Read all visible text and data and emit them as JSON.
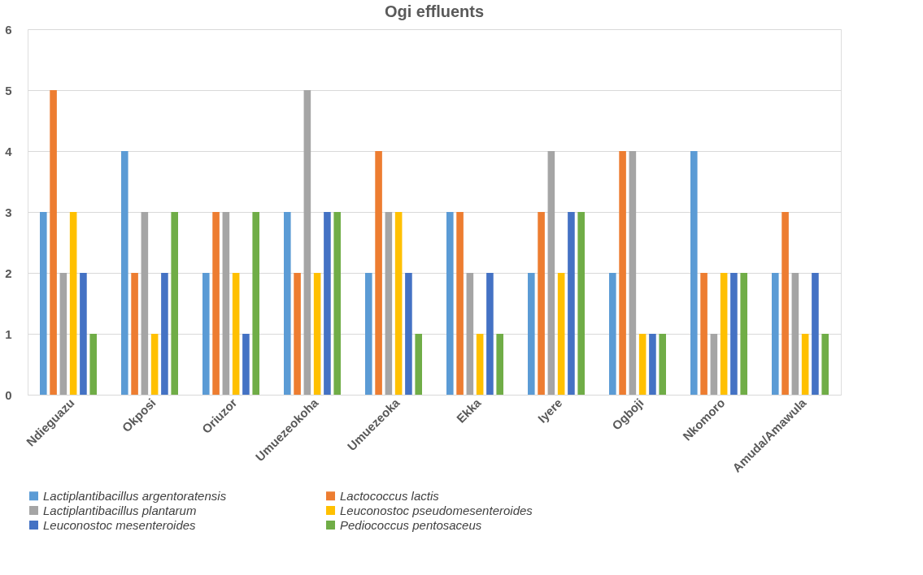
{
  "chart_data": {
    "type": "bar",
    "title": "Ogi effluents",
    "categories": [
      "Ndieguazu",
      "Okposi",
      "Oriuzor",
      "Umuezeokoha",
      "Umuezeoka",
      "Ekka",
      "Iyere",
      "Ogboji",
      "Nkomoro",
      "Amuda/Amawula"
    ],
    "series": [
      {
        "name": "Lactiplantibacillus argentoratensis",
        "color": "#5b9bd5",
        "values": [
          3,
          4,
          2,
          3,
          2,
          3,
          2,
          2,
          4,
          2
        ]
      },
      {
        "name": "Lactococcus lactis",
        "color": "#ed7d31",
        "values": [
          5,
          2,
          3,
          2,
          4,
          3,
          3,
          4,
          2,
          3
        ]
      },
      {
        "name": "Lactiplantibacillus plantarum",
        "color": "#a5a5a5",
        "values": [
          2,
          3,
          3,
          5,
          3,
          2,
          4,
          4,
          1,
          2
        ]
      },
      {
        "name": "Leuconostoc pseudomesenteroides",
        "color": "#ffc000",
        "values": [
          3,
          1,
          2,
          2,
          3,
          1,
          2,
          1,
          2,
          1
        ]
      },
      {
        "name": "Leuconostoc mesenteroides",
        "color": "#4472c4",
        "values": [
          2,
          2,
          1,
          3,
          2,
          2,
          3,
          1,
          2,
          2
        ]
      },
      {
        "name": "Pediococcus pentosaceus",
        "color": "#70ad47",
        "values": [
          1,
          3,
          3,
          3,
          1,
          1,
          3,
          1,
          2,
          1
        ]
      }
    ],
    "ylim": [
      0,
      6
    ],
    "yticks": [
      0,
      1,
      2,
      3,
      4,
      5,
      6
    ],
    "grid": "y",
    "legend": "bottom"
  }
}
